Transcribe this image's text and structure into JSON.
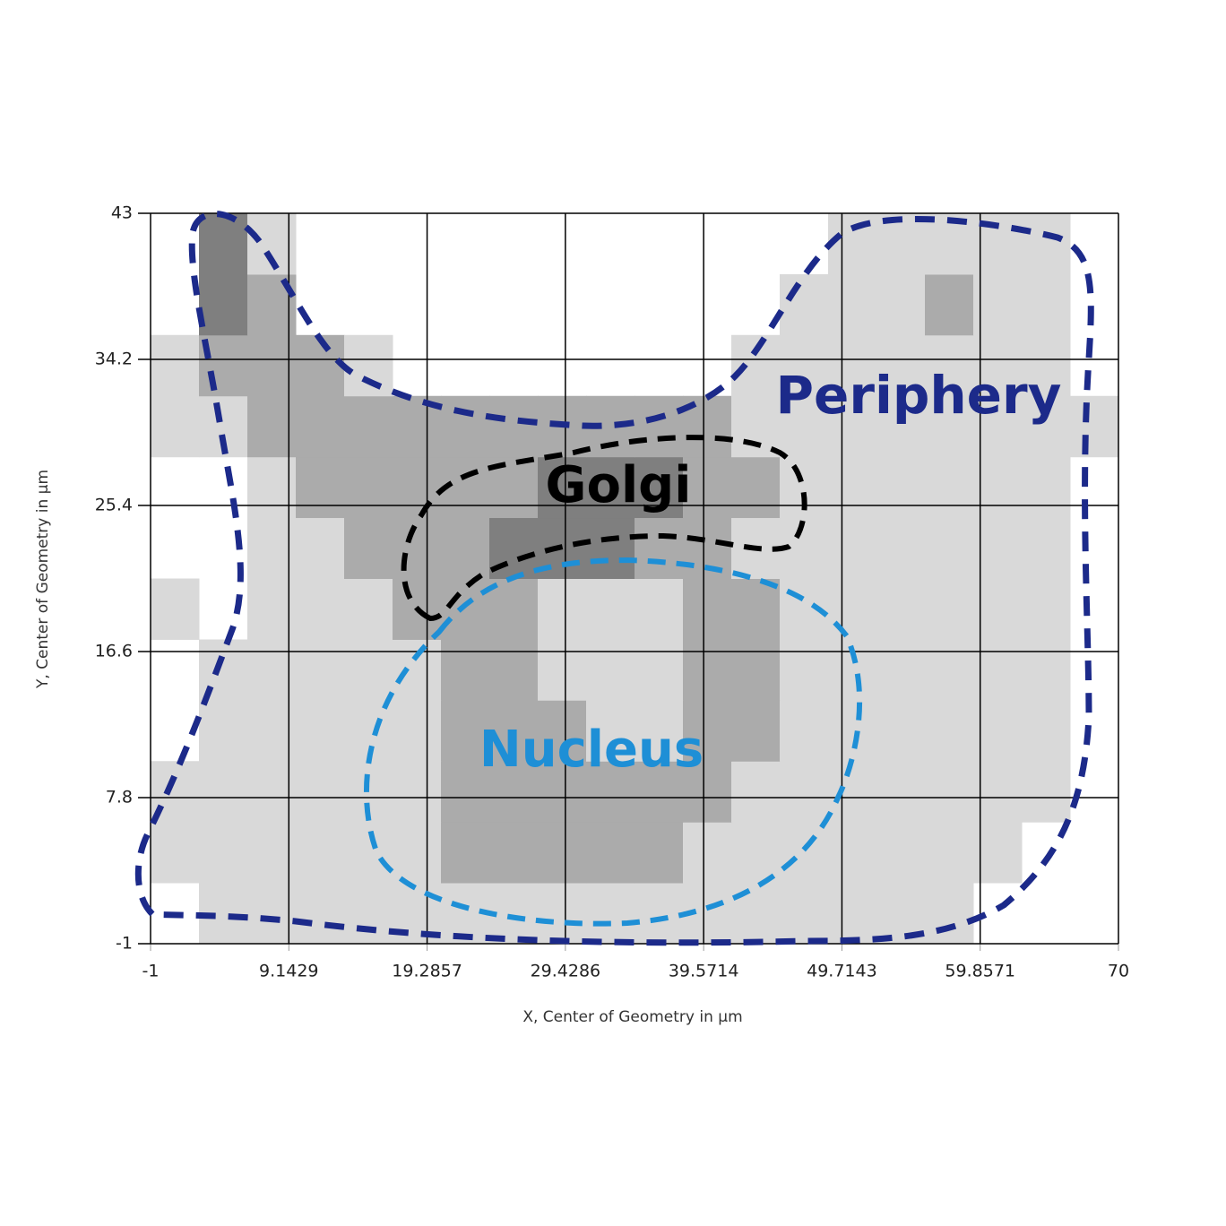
{
  "chart_data": {
    "type": "heatmap",
    "x_label": "X, Center of Geometry in µm",
    "y_label": "Y, Center of Geometry in µm",
    "xlim": [
      -1,
      70
    ],
    "ylim": [
      -1,
      43
    ],
    "xticks": [
      -1,
      9.1429,
      19.2857,
      29.4286,
      39.5714,
      49.7143,
      59.8571,
      70
    ],
    "yticks": [
      -1,
      7.8,
      16.6,
      25.4,
      34.2,
      43
    ],
    "grid": true,
    "grid_color": "#000000",
    "x_bins": [
      -1,
      2.55,
      6.1,
      9.65,
      13.2,
      16.75,
      20.3,
      23.85,
      27.4,
      30.95,
      34.5,
      38.05,
      41.6,
      45.15,
      48.7,
      52.25,
      55.8,
      59.35,
      62.9,
      66.45,
      70
    ],
    "y_bins": [
      -1,
      2.67,
      6.33,
      10,
      13.67,
      17.33,
      21,
      24.67,
      28.33,
      32,
      35.67,
      39.33,
      43
    ],
    "level_colors": [
      "#ffffff",
      "#d9d9d9",
      "#ababab",
      "#7f7f7f"
    ],
    "z": [
      [
        0,
        1,
        1,
        1,
        1,
        1,
        1,
        1,
        1,
        1,
        1,
        1,
        1,
        1,
        1,
        1,
        1,
        0,
        0,
        0
      ],
      [
        1,
        1,
        1,
        1,
        1,
        1,
        2,
        2,
        2,
        2,
        2,
        1,
        1,
        1,
        1,
        1,
        1,
        1,
        0,
        0
      ],
      [
        1,
        1,
        1,
        1,
        1,
        1,
        2,
        2,
        2,
        2,
        2,
        2,
        1,
        1,
        1,
        1,
        1,
        1,
        1,
        0
      ],
      [
        0,
        1,
        1,
        1,
        1,
        1,
        2,
        2,
        2,
        1,
        1,
        2,
        2,
        1,
        1,
        1,
        1,
        1,
        1,
        0
      ],
      [
        0,
        1,
        1,
        1,
        1,
        1,
        2,
        2,
        1,
        1,
        1,
        2,
        2,
        1,
        1,
        1,
        1,
        1,
        1,
        0
      ],
      [
        1,
        0,
        1,
        1,
        1,
        2,
        2,
        2,
        1,
        1,
        1,
        2,
        2,
        1,
        1,
        1,
        1,
        1,
        1,
        0
      ],
      [
        0,
        0,
        1,
        1,
        2,
        2,
        2,
        3,
        3,
        3,
        2,
        2,
        1,
        1,
        1,
        1,
        1,
        1,
        1,
        0
      ],
      [
        0,
        0,
        1,
        2,
        2,
        2,
        2,
        2,
        3,
        3,
        3,
        2,
        2,
        1,
        1,
        1,
        1,
        1,
        1,
        0
      ],
      [
        1,
        1,
        2,
        2,
        2,
        2,
        2,
        2,
        2,
        2,
        2,
        2,
        1,
        1,
        1,
        1,
        1,
        1,
        1,
        1
      ],
      [
        1,
        2,
        2,
        2,
        1,
        0,
        0,
        0,
        0,
        0,
        0,
        0,
        1,
        1,
        1,
        1,
        1,
        1,
        1,
        0
      ],
      [
        0,
        3,
        2,
        0,
        0,
        0,
        0,
        0,
        0,
        0,
        0,
        0,
        0,
        1,
        1,
        1,
        2,
        1,
        1,
        0
      ],
      [
        0,
        3,
        1,
        0,
        0,
        0,
        0,
        0,
        0,
        0,
        0,
        0,
        0,
        0,
        1,
        1,
        1,
        1,
        1,
        0
      ]
    ],
    "annotations": [
      {
        "text": "Periphery",
        "color": "#1c2a8a"
      },
      {
        "text": "Golgi",
        "color": "#000000"
      },
      {
        "text": "Nucleus",
        "color": "#1e8fd6"
      }
    ]
  }
}
